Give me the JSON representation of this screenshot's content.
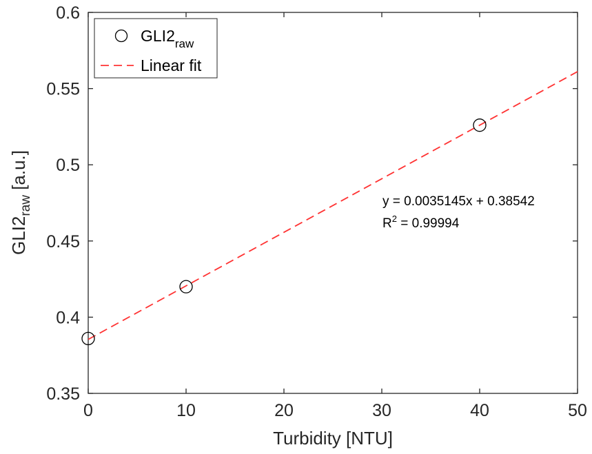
{
  "chart_data": {
    "type": "scatter",
    "xlabel": "Turbidity [NTU]",
    "ylabel_main": "GLI2",
    "ylabel_sub": "raw",
    "ylabel_unit": " [a.u.]",
    "xlim": [
      0,
      50
    ],
    "ylim": [
      0.35,
      0.6
    ],
    "xticks": [
      0,
      10,
      20,
      30,
      40,
      50
    ],
    "xtick_labels": [
      "0",
      "10",
      "20",
      "30",
      "40",
      "50"
    ],
    "yticks": [
      0.35,
      0.4,
      0.45,
      0.5,
      0.55,
      0.6
    ],
    "ytick_labels": [
      "0.35",
      "0.4",
      "0.45",
      "0.5",
      "0.55",
      "0.6"
    ],
    "grid": false,
    "legend_position": "top-left",
    "series": [
      {
        "name_main": "GLI2",
        "name_sub": "raw",
        "marker": "circle",
        "color": "#000000",
        "x": [
          0,
          10,
          40
        ],
        "y": [
          0.386,
          0.42,
          0.526
        ]
      }
    ],
    "fit": {
      "name": "Linear fit",
      "style": "dashed",
      "color": "#ff3333",
      "slope": 0.0035145,
      "intercept": 0.38542,
      "x_range": [
        0,
        50
      ]
    },
    "annotation": {
      "equation": "y = 0.0035145x + 0.38542",
      "r2_prefix": "R",
      "r2_sup": "2",
      "r2_value": " = 0.99994"
    }
  }
}
